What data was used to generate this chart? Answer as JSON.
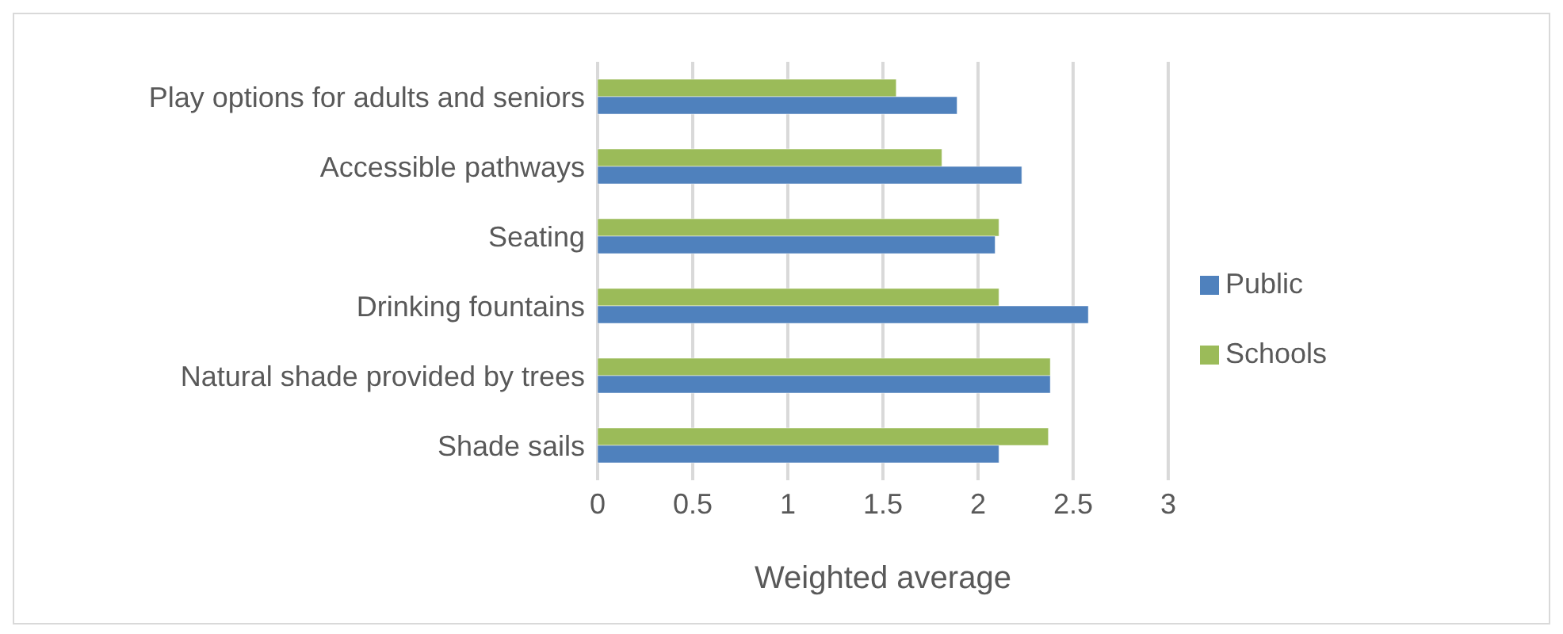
{
  "chart_data": {
    "type": "bar",
    "orientation": "horizontal",
    "xlabel": "Weighted average",
    "categories": [
      "Play options for adults and seniors",
      "Accessible pathways",
      "Seating",
      "Drinking fountains",
      "Natural shade provided by trees",
      "Shade sails"
    ],
    "series": [
      {
        "name": "Schools",
        "color": "#9bbb59",
        "values": [
          1.57,
          1.81,
          2.11,
          2.11,
          2.38,
          2.37
        ]
      },
      {
        "name": "Public",
        "color": "#4f81bd",
        "values": [
          1.89,
          2.23,
          2.09,
          2.58,
          2.38,
          2.11
        ]
      }
    ],
    "xlim": [
      0,
      3
    ],
    "xticks": [
      0,
      0.5,
      1,
      1.5,
      2,
      2.5,
      3
    ],
    "grid": "x",
    "legend": "right"
  }
}
